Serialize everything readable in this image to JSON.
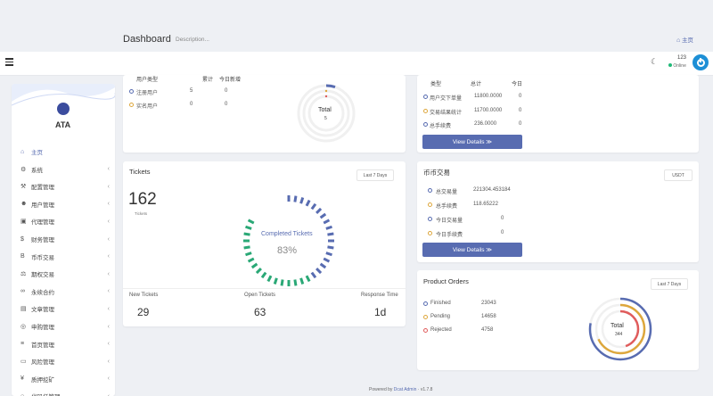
{
  "header": {
    "title": "Dashboard",
    "description": "Description...",
    "home_link": "主页"
  },
  "navbar": {
    "user_name": "123",
    "user_status": "Online"
  },
  "sidebar": {
    "logo_text": "ATA",
    "items": [
      {
        "label": "主页",
        "icon": "home-icon",
        "glyph": "⌂",
        "active": true,
        "chevron": false
      },
      {
        "label": "系统",
        "icon": "gear-icon",
        "glyph": "⚙",
        "chevron": true
      },
      {
        "label": "配置管理",
        "icon": "wrench-icon",
        "glyph": "⚒",
        "chevron": true
      },
      {
        "label": "用户管理",
        "icon": "users-icon",
        "glyph": "☻",
        "chevron": true
      },
      {
        "label": "代理管理",
        "icon": "id-card-icon",
        "glyph": "▣",
        "chevron": true
      },
      {
        "label": "财务管理",
        "icon": "dollar-icon",
        "glyph": "$",
        "chevron": true
      },
      {
        "label": "币币交易",
        "icon": "bitcoin-icon",
        "glyph": "B",
        "chevron": true
      },
      {
        "label": "期权交易",
        "icon": "scale-icon",
        "glyph": "⚖",
        "chevron": true
      },
      {
        "label": "永续合约",
        "icon": "link-icon",
        "glyph": "∞",
        "chevron": true
      },
      {
        "label": "文章管理",
        "icon": "newspaper-icon",
        "glyph": "▤",
        "chevron": true
      },
      {
        "label": "申购管理",
        "icon": "globe-icon",
        "glyph": "◎",
        "chevron": true
      },
      {
        "label": "首页管理",
        "icon": "list-icon",
        "glyph": "≡",
        "chevron": true
      },
      {
        "label": "风险管理",
        "icon": "monitor-icon",
        "glyph": "▭",
        "chevron": true
      },
      {
        "label": "质押挖矿",
        "icon": "yen-icon",
        "glyph": "¥",
        "chevron": true
      },
      {
        "label": "代码任管理",
        "icon": "circle-icon",
        "glyph": "○",
        "chevron": true
      }
    ]
  },
  "users_card": {
    "headers": [
      "用户类型",
      "累计",
      "今日新增"
    ],
    "rows": [
      {
        "label": "注册用户",
        "total": "5",
        "today": "0",
        "color": "#586cb1"
      },
      {
        "label": "实名用户",
        "total": "0",
        "today": "0",
        "color": "#dda73c"
      }
    ],
    "donut_label": "Total",
    "donut_value": "5"
  },
  "orders_card": {
    "headers": [
      "类型",
      "总计",
      "今日"
    ],
    "rows": [
      {
        "label": "用户交下单量",
        "total": "11800.0000",
        "today": "0",
        "color": "#586cb1"
      },
      {
        "label": "交易结果统计",
        "total": "11700.0000",
        "today": "0",
        "color": "#dda73c"
      },
      {
        "label": "总手续费",
        "total": "236.0000",
        "today": "0",
        "color": "#586cb1"
      }
    ],
    "button": "View Details ≫"
  },
  "tickets": {
    "title": "Tickets",
    "select": "Last 7 Days",
    "count": "162",
    "count_label": "Tickets",
    "center_label": "Completed Tickets",
    "center_percent": "83%",
    "completed_fraction": 0.83,
    "stats": [
      {
        "label": "New Tickets",
        "value": "29"
      },
      {
        "label": "Open Tickets",
        "value": "63"
      },
      {
        "label": "Response Time",
        "value": "1d"
      }
    ]
  },
  "coin_trading": {
    "title": "币币交易",
    "select": "USDT",
    "rows": [
      {
        "label": "总交易量",
        "value": "221304.453184",
        "color": "#586cb1"
      },
      {
        "label": "总手续费",
        "value": "118.65222",
        "color": "#dda73c"
      },
      {
        "label": "今日交易量",
        "value": "0",
        "color": "#586cb1"
      },
      {
        "label": "今日手续费",
        "value": "0",
        "color": "#dda73c"
      }
    ],
    "button": "View Details ≫"
  },
  "product_orders": {
    "title": "Product Orders",
    "select": "Last 7 Days",
    "rows": [
      {
        "label": "Finished",
        "value": "23043",
        "color": "#586cb1"
      },
      {
        "label": "Pending",
        "value": "14658",
        "color": "#dda73c"
      },
      {
        "label": "Rejected",
        "value": "4758",
        "color": "#e05c5c"
      }
    ],
    "donut_label": "Total",
    "donut_value": "344"
  },
  "footer": {
    "prefix": "Powered by",
    "brand": "Dcat Admin",
    "sep": "·",
    "version": "v1.7.8"
  },
  "colors": {
    "primary": "#586cb1",
    "success": "#21b978",
    "warning": "#dda73c",
    "danger": "#e05c5c",
    "ticket_green": "#2aa876"
  }
}
